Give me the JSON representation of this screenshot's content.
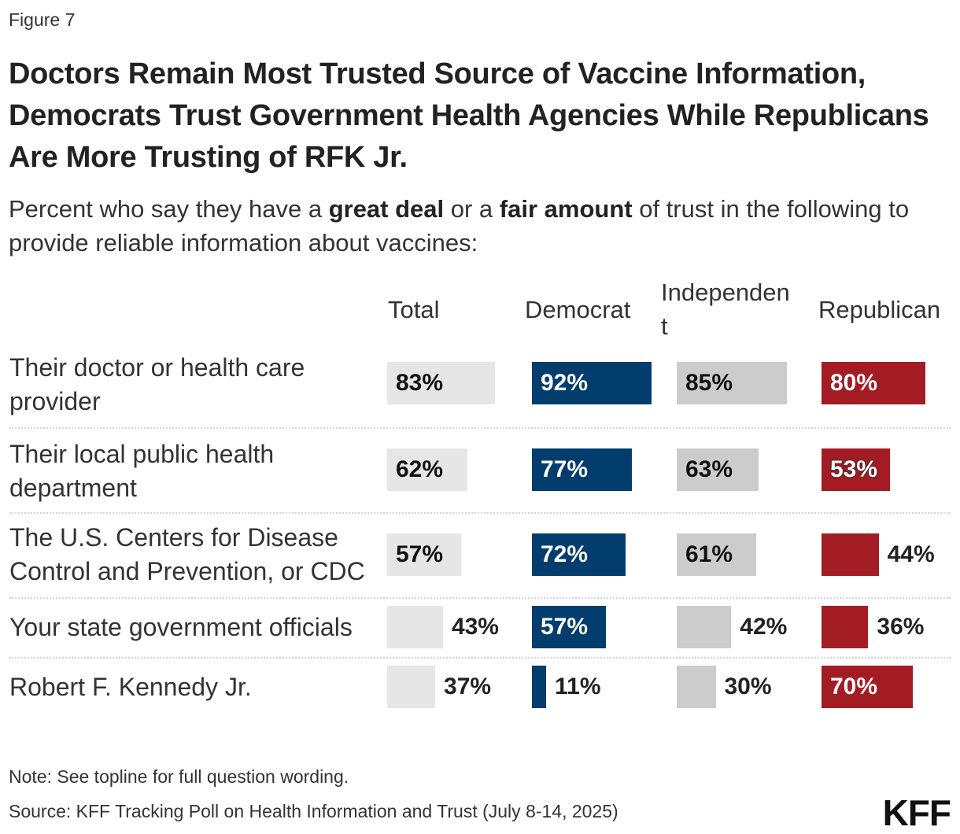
{
  "figure_label": "Figure 7",
  "title": "Doctors Remain Most Trusted Source of Vaccine Information, Democrats Trust Government Health Agencies While Republicans Are More Trusting of RFK Jr.",
  "subtitle": {
    "part1": "Percent who say they have a ",
    "bold1": "great deal",
    "part2": " or a ",
    "bold2": "fair amount",
    "part3": " of trust in the following to provide reliable information about vaccines:"
  },
  "chart_data": {
    "type": "bar",
    "categories": [
      "Their doctor or health care provider",
      "Their local public health department",
      "The U.S. Centers for Disease Control and Prevention, or CDC",
      "Your state government officials",
      "Robert F. Kennedy Jr."
    ],
    "series": [
      {
        "name": "Total",
        "values": [
          83,
          62,
          57,
          43,
          37
        ],
        "color": "#e6e6e6",
        "text_color": "#111111"
      },
      {
        "name": "Democrat",
        "values": [
          92,
          77,
          72,
          57,
          11
        ],
        "color": "#023d6d",
        "text_color": "#ffffff"
      },
      {
        "name": "Independent",
        "values": [
          85,
          63,
          61,
          42,
          30
        ],
        "color": "#cccccc",
        "text_color": "#111111"
      },
      {
        "name": "Republican",
        "values": [
          80,
          53,
          44,
          36,
          70
        ],
        "color": "#a31c24",
        "text_color": "#ffffff"
      }
    ],
    "value_suffix": "%",
    "xlim": [
      0,
      100
    ],
    "grid": false,
    "legend": "column headers"
  },
  "note": "Note: See topline for full question wording.",
  "source": "Source: KFF Tracking Poll on Health Information and Trust (July 8-14, 2025)",
  "logo": "KFF"
}
